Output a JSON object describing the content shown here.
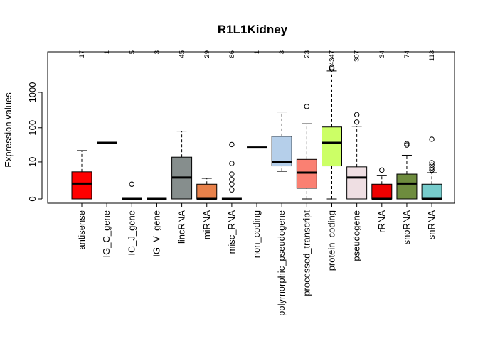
{
  "chart_data": {
    "type": "boxplot",
    "title": "R1L1Kidney",
    "ylabel": "Expression values",
    "yscale": "log10(x+1)",
    "yticks": [
      {
        "label": "0",
        "value": 0
      },
      {
        "label": "10",
        "value": 10
      },
      {
        "label": "100",
        "value": 100
      },
      {
        "label": "1000",
        "value": 1000
      }
    ],
    "ylim": [
      0,
      5000
    ],
    "categories": [
      {
        "name": "antisense",
        "count": "17",
        "color": "#ff0000",
        "min": 0,
        "q1": 0,
        "median": 1.7,
        "q3": 4.8,
        "max": 22,
        "outliers": []
      },
      {
        "name": "IG_C_gene",
        "count": "1",
        "color": "#bdbdbd",
        "min": 37,
        "q1": 37,
        "median": 37,
        "q3": 37,
        "max": 37,
        "outliers": []
      },
      {
        "name": "IG_J_gene",
        "count": "5",
        "color": "#a6cee3",
        "min": 0,
        "q1": 0,
        "median": 0,
        "q3": 0,
        "max": 0,
        "outliers": [
          1.6
        ]
      },
      {
        "name": "IG_V_gene",
        "count": "3",
        "color": "#1f78b4",
        "min": 0,
        "q1": 0,
        "median": 0,
        "q3": 0,
        "max": 0,
        "outliers": []
      },
      {
        "name": "lincRNA",
        "count": "45",
        "color": "#868e8d",
        "min": 0,
        "q1": 0,
        "median": 3.0,
        "q3": 14,
        "max": 80,
        "outliers": []
      },
      {
        "name": "miRNA",
        "count": "29",
        "color": "#e8814a",
        "min": 0,
        "q1": 0,
        "median": 0,
        "q3": 1.6,
        "max": 2.8,
        "outliers": []
      },
      {
        "name": "misc_RNA",
        "count": "86",
        "color": "#9cbd6a",
        "min": 0,
        "q1": 0,
        "median": 0,
        "q3": 0,
        "max": 0,
        "outliers": [
          0.8,
          1.6,
          2.5,
          4.0,
          9.0,
          33
        ]
      },
      {
        "name": "non_coding",
        "count": "1",
        "color": "#fdbf6f",
        "min": 27,
        "q1": 27,
        "median": 27,
        "q3": 27,
        "max": 27,
        "outliers": []
      },
      {
        "name": "polymorphic_pseudogene",
        "count": "3",
        "color": "#b5cfea",
        "min": 5.0,
        "q1": 7.5,
        "median": 10,
        "q3": 57,
        "max": 280,
        "outliers": []
      },
      {
        "name": "processed_transcript",
        "count": "23",
        "color": "#fa8072",
        "min": 0,
        "q1": 1.0,
        "median": 4.5,
        "q3": 12,
        "max": 130,
        "outliers": [
          400
        ]
      },
      {
        "name": "protein_coding",
        "count": "4347",
        "color": "#ccff66",
        "min": 0,
        "q1": 7.5,
        "median": 37,
        "q3": 105,
        "max": 4000,
        "outliers": [
          4600,
          5000
        ]
      },
      {
        "name": "pseudogene",
        "count": "307",
        "color": "#efdfe3",
        "min": 0,
        "q1": 0,
        "median": 3.0,
        "q3": 7.0,
        "max": 110,
        "outliers": [
          145,
          235
        ]
      },
      {
        "name": "rRNA",
        "count": "34",
        "color": "#ee0000",
        "min": 0,
        "q1": 0,
        "median": 0,
        "q3": 1.6,
        "max": 3.5,
        "outliers": [
          5.5
        ]
      },
      {
        "name": "snoRNA",
        "count": "74",
        "color": "#6e8c3e",
        "min": 0,
        "q1": 0,
        "median": 1.7,
        "q3": 4.0,
        "max": 16,
        "outliers": [
          32,
          35
        ]
      },
      {
        "name": "snRNA",
        "count": "113",
        "color": "#76cccc",
        "min": 0,
        "q1": 0,
        "median": 0,
        "q3": 1.6,
        "max": 4.5,
        "outliers": [
          5.5,
          6.5,
          8.0,
          9.5,
          47
        ]
      }
    ]
  }
}
